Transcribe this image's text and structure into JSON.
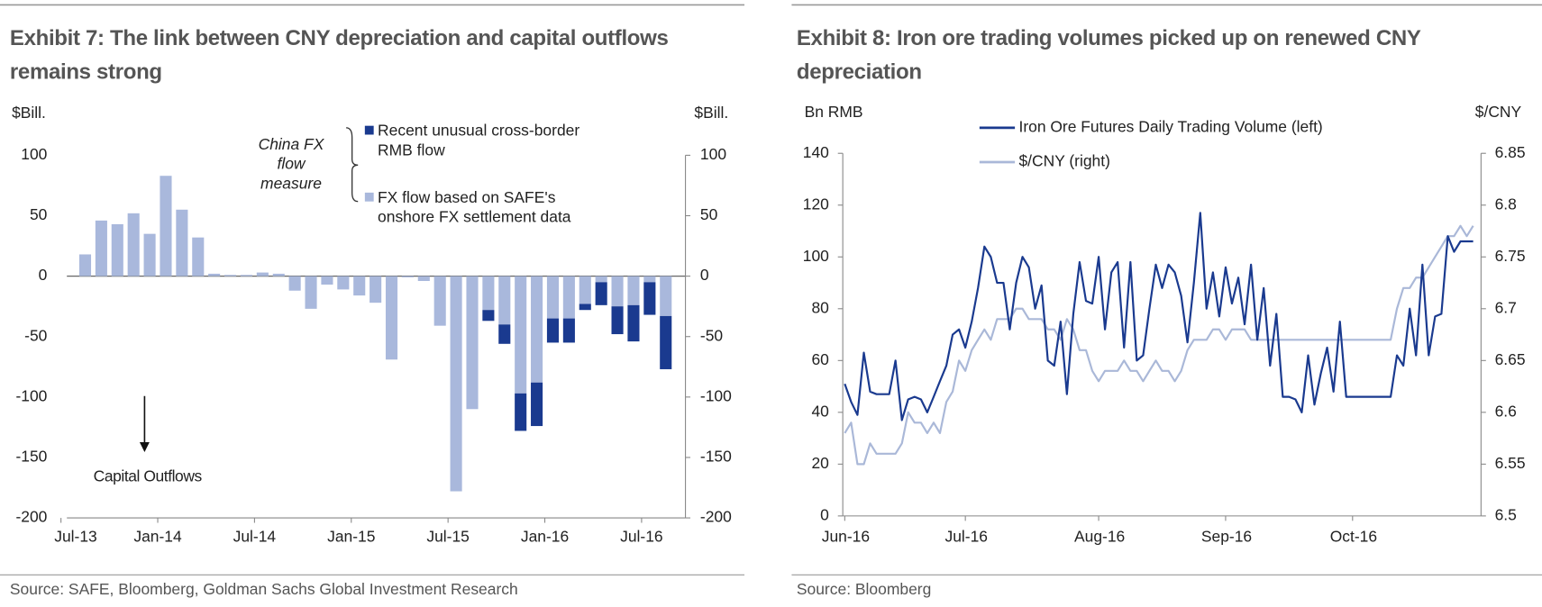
{
  "chart_data": [
    {
      "type": "bar",
      "stacked": true,
      "title": "Exhibit 7: The link between CNY depreciation and capital outflows remains strong",
      "ylabel": "$Bill.",
      "y2label": "$Bill.",
      "annotations": [
        "China FX flow measure",
        "Capital Outflows"
      ],
      "source": "Source: SAFE, Bloomberg, Goldman Sachs Global Investment Research",
      "categories": [
        "Jul-13",
        null,
        null,
        null,
        null,
        null,
        "Jan-14",
        null,
        null,
        null,
        null,
        null,
        "Jul-14",
        null,
        null,
        null,
        null,
        null,
        "Jan-15",
        null,
        null,
        null,
        null,
        null,
        "Jul-15",
        null,
        null,
        null,
        null,
        null,
        "Jan-16",
        null,
        null,
        null,
        null,
        null,
        "Jul-16",
        null
      ],
      "series": [
        {
          "name": "Recent unusual cross-border RMB flow",
          "color": "#1a3a8f",
          "values": [
            null,
            null,
            null,
            null,
            null,
            null,
            null,
            null,
            null,
            null,
            null,
            null,
            null,
            null,
            null,
            null,
            null,
            null,
            null,
            null,
            null,
            null,
            null,
            null,
            null,
            null,
            -9,
            -16,
            -31,
            -36,
            -20,
            -20,
            -5,
            -19,
            -23,
            -30,
            -27,
            -44
          ]
        },
        {
          "name": "FX flow based on SAFE's onshore FX settlement data",
          "color": "#a9b8dc",
          "values": [
            null,
            18,
            46,
            43,
            52,
            35,
            83,
            55,
            32,
            2,
            1,
            1,
            3,
            2,
            -12,
            -27,
            -7,
            -11,
            -16,
            -22,
            -69,
            -1,
            -4,
            -41,
            -178,
            -110,
            -28,
            -40,
            -97,
            -88,
            -35,
            -35,
            -23,
            -5,
            -25,
            -24,
            -5,
            -33
          ]
        }
      ],
      "ylim": [
        -200,
        100
      ],
      "yticks": [
        -200,
        -150,
        -100,
        -50,
        0,
        50,
        100
      ],
      "y2lim": [
        -200,
        100
      ],
      "y2ticks": [
        -200,
        -150,
        -100,
        -50,
        0,
        50,
        100
      ]
    },
    {
      "type": "line",
      "title": "Exhibit 8: Iron ore trading volumes picked up on renewed CNY depreciation",
      "ylabel": "Bn RMB",
      "y2label": "$/CNY",
      "source": "Source: Bloomberg",
      "categories": [
        "Jun-16",
        null,
        null,
        null,
        null,
        null,
        null,
        null,
        null,
        null,
        null,
        null,
        null,
        null,
        null,
        null,
        null,
        null,
        null,
        "Jul-16",
        null,
        null,
        null,
        null,
        null,
        null,
        null,
        null,
        null,
        null,
        null,
        null,
        null,
        null,
        null,
        null,
        null,
        null,
        null,
        null,
        "Aug-16",
        null,
        null,
        null,
        null,
        null,
        null,
        null,
        null,
        null,
        null,
        null,
        null,
        null,
        null,
        null,
        null,
        null,
        null,
        null,
        "Sep-16",
        null,
        null,
        null,
        null,
        null,
        null,
        null,
        null,
        null,
        null,
        null,
        null,
        null,
        null,
        null,
        null,
        null,
        null,
        null,
        "Oct-16",
        null,
        null,
        null,
        null,
        null,
        null,
        null,
        null,
        null,
        null,
        null,
        null,
        null,
        null,
        null,
        null,
        null,
        null,
        null
      ],
      "series": [
        {
          "name": "Iron Ore Futures Daily Trading Volume (left)",
          "color": "#1a3a8f",
          "values": [
            51,
            44,
            39,
            63,
            48,
            47,
            47,
            47,
            60,
            37,
            45,
            46,
            45,
            40,
            46,
            52,
            58,
            70,
            72,
            65,
            75,
            88,
            104,
            100,
            90,
            90,
            72,
            90,
            100,
            96,
            80,
            89,
            60,
            58,
            75,
            47,
            78,
            98,
            83,
            82,
            100,
            72,
            94,
            98,
            65,
            98,
            60,
            62,
            80,
            97,
            88,
            97,
            94,
            85,
            67,
            90,
            117,
            80,
            94,
            77,
            96,
            82,
            92,
            74,
            97,
            68,
            88,
            58,
            78,
            46,
            46,
            45,
            40,
            62,
            43,
            55,
            65,
            48,
            75,
            46,
            46,
            46,
            46,
            46,
            46,
            46,
            46,
            62,
            58,
            80,
            62,
            97,
            62,
            77,
            78,
            108,
            102,
            106,
            106,
            106
          ]
        },
        {
          "name": "$/CNY (right)",
          "color": "#aab8d8",
          "axis": "y2",
          "values": [
            6.58,
            6.59,
            6.55,
            6.55,
            6.57,
            6.56,
            6.56,
            6.56,
            6.56,
            6.57,
            6.6,
            6.59,
            6.59,
            6.58,
            6.59,
            6.58,
            6.61,
            6.62,
            6.65,
            6.64,
            6.66,
            6.67,
            6.68,
            6.67,
            6.69,
            6.69,
            6.69,
            6.7,
            6.7,
            6.69,
            6.69,
            6.69,
            6.68,
            6.68,
            6.67,
            6.69,
            6.68,
            6.66,
            6.66,
            6.64,
            6.63,
            6.64,
            6.64,
            6.64,
            6.65,
            6.64,
            6.64,
            6.63,
            6.64,
            6.65,
            6.64,
            6.64,
            6.63,
            6.64,
            6.66,
            6.67,
            6.67,
            6.67,
            6.68,
            6.68,
            6.67,
            6.68,
            6.68,
            6.68,
            6.67,
            6.67,
            6.67,
            6.67,
            6.67,
            6.67,
            6.67,
            6.67,
            6.67,
            6.67,
            6.67,
            6.67,
            6.67,
            6.67,
            6.67,
            6.67,
            6.67,
            6.67,
            6.67,
            6.67,
            6.67,
            6.67,
            6.67,
            6.7,
            6.72,
            6.72,
            6.73,
            6.73,
            6.74,
            6.75,
            6.76,
            6.77,
            6.77,
            6.78,
            6.77,
            6.78
          ]
        }
      ],
      "ylim": [
        0,
        140
      ],
      "yticks": [
        0,
        20,
        40,
        60,
        80,
        100,
        120,
        140
      ],
      "y2lim": [
        6.5,
        6.85
      ],
      "y2ticks": [
        6.5,
        6.55,
        6.6,
        6.65,
        6.7,
        6.75,
        6.8,
        6.85
      ]
    }
  ]
}
